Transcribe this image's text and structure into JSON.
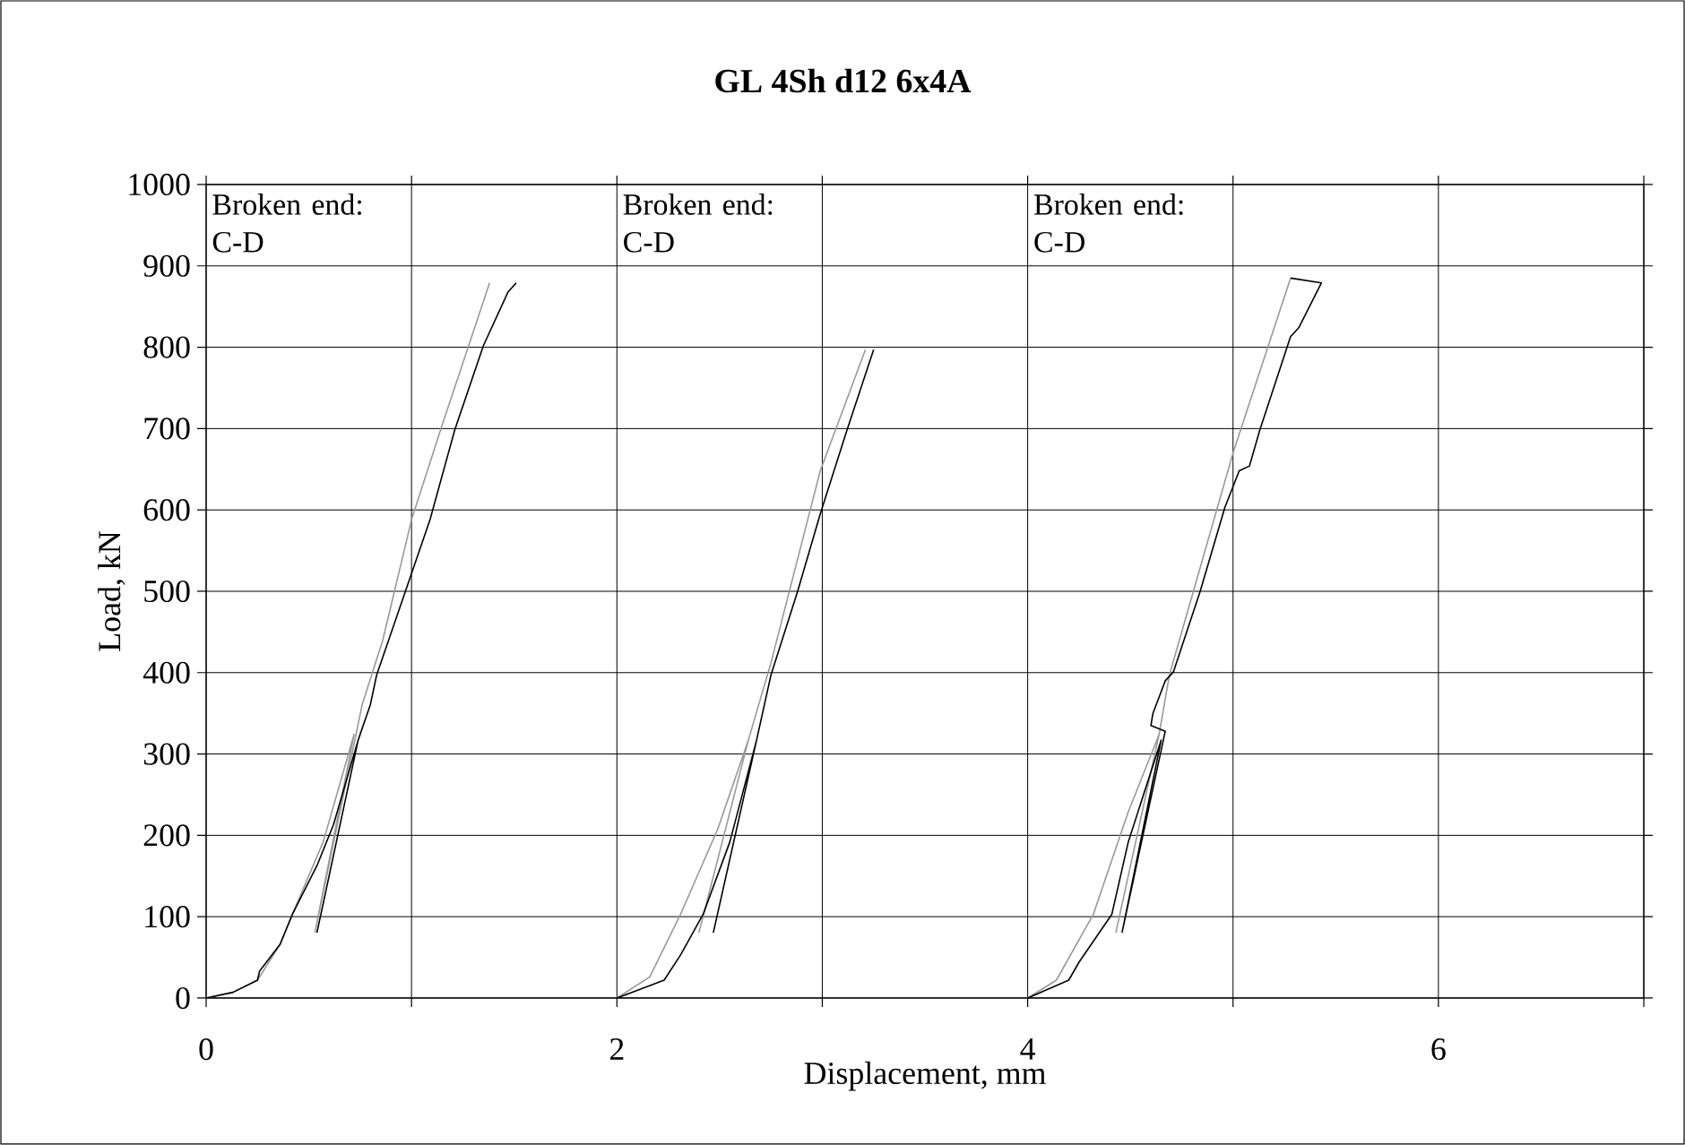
{
  "chart_data": {
    "type": "line",
    "title": "GL 4Sh d12 6x4A",
    "xlabel": "Displacement, mm",
    "ylabel": "Load, kN",
    "xlim": [
      0,
      7
    ],
    "ylim": [
      0,
      1000
    ],
    "xticks": [
      0,
      {
        "value": 1,
        "label": null
      },
      2,
      {
        "value": 3,
        "label": null
      },
      4,
      {
        "value": 5,
        "label": null
      },
      6,
      {
        "value": 7,
        "label": null
      }
    ],
    "yticks": [
      0,
      100,
      200,
      300,
      400,
      500,
      600,
      700,
      800,
      900,
      1000
    ],
    "grid": true,
    "marker": "none",
    "line_style": "solid",
    "annotations": [
      "Broken end: C-D",
      "Broken end: C-D",
      "Broken end: C-D"
    ],
    "series": [
      {
        "color": "#999999",
        "x": [
          0,
          0.13,
          0.25,
          0.36,
          0.42,
          0.57,
          0.72,
          0.53,
          0.76,
          0.86,
          1.0,
          1.15,
          1.38
        ],
        "values": [
          0,
          7,
          22,
          66,
          103,
          192,
          324,
          81,
          361,
          440,
          588,
          705,
          879
        ]
      },
      {
        "color": "#000000",
        "x": [
          0,
          0.13,
          0.25,
          0.26,
          0.36,
          0.42,
          0.54,
          0.62,
          0.74,
          0.54,
          0.74,
          0.8,
          0.83,
          0.98,
          1.09,
          1.21,
          1.35,
          1.47,
          1.51
        ],
        "values": [
          0,
          7,
          22,
          33,
          66,
          103,
          163,
          213,
          317,
          81,
          317,
          361,
          397,
          507,
          588,
          698,
          802,
          868,
          879
        ]
      },
      {
        "color": "#999999",
        "x": [
          2.0,
          2.16,
          2.31,
          2.49,
          2.64,
          2.4,
          2.64,
          2.75,
          2.99,
          3.21
        ],
        "values": [
          0,
          26,
          103,
          207,
          317,
          81,
          317,
          412,
          648,
          797
        ]
      },
      {
        "color": "#000000",
        "x": [
          2.0,
          2.23,
          2.31,
          2.42,
          2.55,
          2.68,
          2.47,
          2.68,
          2.75,
          2.88,
          2.99,
          3.12,
          3.25
        ],
        "values": [
          0,
          22,
          53,
          103,
          192,
          317,
          81,
          317,
          397,
          500,
          595,
          698,
          797
        ]
      },
      {
        "color": "#999999",
        "x": [
          4.0,
          4.14,
          4.32,
          4.49,
          4.64,
          4.43,
          4.64,
          4.69,
          5.0,
          5.28
        ],
        "values": [
          0,
          22,
          103,
          229,
          324,
          81,
          324,
          397,
          670,
          885
        ]
      },
      {
        "color": "#000000",
        "x": [
          4.0,
          4.2,
          4.25,
          4.41,
          4.49,
          4.65,
          4.46,
          4.67,
          4.6,
          4.61,
          4.67,
          4.71,
          4.84,
          4.96,
          5.03,
          5.08,
          5.13,
          5.28,
          5.32,
          5.43,
          5.28
        ],
        "values": [
          0,
          22,
          44,
          103,
          192,
          317,
          81,
          328,
          335,
          350,
          390,
          401,
          500,
          603,
          648,
          654,
          698,
          813,
          824,
          879,
          885
        ]
      }
    ]
  }
}
